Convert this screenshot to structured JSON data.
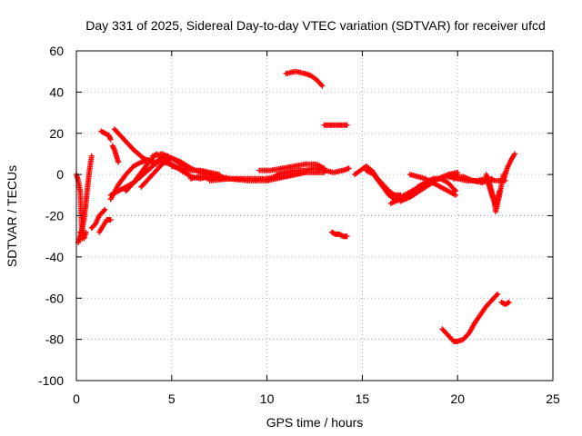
{
  "chart_data": {
    "type": "scatter",
    "title": "Day 331 of 2025, Sidereal Day-to-day VTEC variation (SDTVAR) for receiver ufcd",
    "xlabel": "GPS time / hours",
    "ylabel": "SDTVAR / TECUs",
    "xlim": [
      0,
      25
    ],
    "ylim": [
      -100,
      60
    ],
    "x_ticks": [
      0,
      5,
      10,
      15,
      20,
      25
    ],
    "y_ticks": [
      -100,
      -80,
      -60,
      -40,
      -20,
      0,
      20,
      40,
      60
    ],
    "x_tick_labels": [
      "0",
      "5",
      "10",
      "15",
      "20",
      "25"
    ],
    "y_tick_labels": [
      "-100",
      "-80",
      "-60",
      "-40",
      "-20",
      "0",
      "20",
      "40",
      "60"
    ],
    "grid": true,
    "marker": "+",
    "color": "#ff0000",
    "series": [
      {
        "name": "s1",
        "x": [
          0.0,
          0.1,
          0.2,
          0.3
        ],
        "y": [
          0,
          -3,
          -8,
          -31
        ]
      },
      {
        "name": "s2",
        "x": [
          0.1,
          0.2,
          0.3,
          0.4,
          0.5,
          0.6,
          0.7,
          0.8
        ],
        "y": [
          -33,
          -30,
          -27,
          -22,
          -14,
          -5,
          3,
          9
        ]
      },
      {
        "name": "s3",
        "x": [
          0.2,
          0.3,
          0.4,
          0.5
        ],
        "y": [
          -28,
          -29,
          -31,
          -28
        ]
      },
      {
        "name": "s4",
        "x": [
          0.8,
          1.0,
          1.2,
          1.5
        ],
        "y": [
          -26,
          -24,
          -20,
          -17
        ]
      },
      {
        "name": "s5",
        "x": [
          1.2,
          1.4,
          1.6,
          1.8
        ],
        "y": [
          -28,
          -25,
          -22,
          -22
        ]
      },
      {
        "name": "s6",
        "x": [
          1.3,
          1.5,
          1.7,
          1.8
        ],
        "y": [
          21,
          20,
          19,
          17
        ]
      },
      {
        "name": "s7",
        "x": [
          1.9,
          2.0,
          2.1,
          2.2
        ],
        "y": [
          14,
          12,
          9,
          6
        ]
      },
      {
        "name": "s8",
        "x": [
          2.0,
          2.5,
          3.0,
          3.5,
          4.0,
          4.5,
          5.0
        ],
        "y": [
          22,
          17,
          12,
          8,
          6,
          6,
          5
        ]
      },
      {
        "name": "s9",
        "x": [
          1.8,
          2.2,
          2.6,
          3.0,
          3.4,
          3.8,
          4.2
        ],
        "y": [
          -12,
          -5,
          0,
          4,
          6,
          7,
          5
        ]
      },
      {
        "name": "s10",
        "x": [
          1.8,
          2.4,
          3.0,
          3.5,
          4.0,
          4.4,
          4.8
        ],
        "y": [
          -10,
          -7,
          -4,
          0,
          4,
          8,
          9
        ]
      },
      {
        "name": "s11",
        "x": [
          2.6,
          3.0,
          3.4,
          3.8,
          4.2
        ],
        "y": [
          -8,
          -4,
          1,
          6,
          10
        ]
      },
      {
        "name": "s12",
        "x": [
          3.4,
          3.8,
          4.2,
          4.6,
          5.0,
          5.5,
          6.0
        ],
        "y": [
          -6,
          -2,
          2,
          6,
          8,
          6,
          3
        ]
      },
      {
        "name": "s13",
        "x": [
          4.0,
          4.5,
          5.0,
          5.5,
          6.0,
          6.5,
          7.0,
          7.5,
          8.0
        ],
        "y": [
          9,
          10,
          8,
          5,
          3,
          1,
          0,
          -1,
          -2
        ]
      },
      {
        "name": "s14",
        "x": [
          4.5,
          5.0,
          5.5,
          6.0,
          6.5,
          7.0,
          7.5,
          8.0
        ],
        "y": [
          7,
          5,
          2,
          -1,
          -2,
          -1,
          -2,
          -2
        ]
      },
      {
        "name": "s15",
        "x": [
          5.0,
          5.5,
          6.0,
          6.5,
          7.0,
          7.5
        ],
        "y": [
          4,
          3,
          2,
          2,
          1,
          0
        ]
      },
      {
        "name": "s16",
        "x": [
          6.0,
          6.5,
          7.0,
          7.5,
          8.0,
          8.5,
          9.0,
          9.5,
          10.0,
          10.5,
          11.0,
          11.5,
          12.0
        ],
        "y": [
          -2,
          -1,
          -2,
          -1,
          -2,
          -2,
          -2,
          -2,
          -2,
          -1,
          -1,
          0,
          1
        ]
      },
      {
        "name": "s17",
        "x": [
          7.0,
          8.0,
          9.0,
          10.0,
          10.5,
          11.0,
          11.5,
          12.0,
          12.5,
          13.0
        ],
        "y": [
          -3,
          -2,
          -3,
          -3,
          -2,
          -1,
          0,
          1,
          1,
          1
        ]
      },
      {
        "name": "s18",
        "x": [
          9.6,
          10.2,
          10.8,
          11.4,
          12.0,
          12.6,
          13.0
        ],
        "y": [
          2,
          2,
          3,
          4,
          5,
          5,
          3
        ]
      },
      {
        "name": "s19",
        "x": [
          10.5,
          11.0,
          11.5,
          12.0,
          12.5,
          13.0,
          13.5,
          14.0,
          14.3
        ],
        "y": [
          0,
          1,
          2,
          2,
          3,
          2,
          1,
          2,
          3
        ]
      },
      {
        "name": "s20",
        "x": [
          11.0,
          11.5,
          12.0,
          12.3,
          12.6,
          12.9
        ],
        "y": [
          49,
          50,
          49,
          48,
          46,
          43
        ]
      },
      {
        "name": "s21",
        "x": [
          13.0,
          13.3,
          13.6,
          13.9,
          14.2
        ],
        "y": [
          24,
          24,
          24,
          24,
          24
        ]
      },
      {
        "name": "s22",
        "x": [
          13.4,
          13.6,
          13.8,
          14.0,
          14.2
        ],
        "y": [
          -28,
          -29,
          -29,
          -30,
          -30
        ]
      },
      {
        "name": "s23",
        "x": [
          14.6,
          14.9,
          15.2,
          15.5,
          15.8,
          16.1,
          16.4,
          16.7,
          17.0
        ],
        "y": [
          0,
          2,
          4,
          2,
          -2,
          -5,
          -8,
          -10,
          -10
        ]
      },
      {
        "name": "s24",
        "x": [
          15.2,
          15.6,
          16.0,
          16.4,
          16.7,
          17.0,
          17.4,
          17.8,
          18.2,
          18.6
        ],
        "y": [
          2,
          0,
          -5,
          -10,
          -12,
          -11,
          -9,
          -7,
          -5,
          -3
        ]
      },
      {
        "name": "s25",
        "x": [
          16.5,
          17.0,
          17.5,
          18.0,
          18.5,
          19.0,
          19.5,
          20.0
        ],
        "y": [
          -14,
          -12,
          -10,
          -7,
          -4,
          -2,
          -1,
          0
        ]
      },
      {
        "name": "s26",
        "x": [
          17.0,
          17.5,
          18.0,
          18.5,
          19.0,
          19.5,
          20.0
        ],
        "y": [
          -13,
          -11,
          -8,
          -5,
          -2,
          0,
          1
        ]
      },
      {
        "name": "s27",
        "x": [
          17.5,
          17.9,
          18.3,
          18.7,
          19.1,
          19.5,
          19.9
        ],
        "y": [
          0,
          -1,
          -2,
          -4,
          -6,
          -8,
          -10
        ]
      },
      {
        "name": "s28",
        "x": [
          17.9,
          18.3,
          18.7,
          19.1,
          19.5,
          19.9
        ],
        "y": [
          -6,
          -4,
          -2,
          -2,
          -4,
          -8
        ]
      },
      {
        "name": "s29",
        "x": [
          19.5,
          20.0,
          20.5,
          21.0,
          21.5,
          22.0,
          22.5
        ],
        "y": [
          -1,
          -2,
          -3,
          -3,
          -2,
          -3,
          -3
        ]
      },
      {
        "name": "s30",
        "x": [
          19.8,
          20.3,
          20.8,
          21.3,
          21.8
        ],
        "y": [
          -2,
          -1,
          -3,
          -4,
          -2
        ]
      },
      {
        "name": "s31",
        "x": [
          21.5,
          21.7,
          21.9,
          22.0,
          22.2,
          22.4
        ],
        "y": [
          0,
          -5,
          -12,
          -18,
          -10,
          0
        ]
      },
      {
        "name": "s32",
        "x": [
          21.6,
          21.8,
          22.0,
          22.2
        ],
        "y": [
          -4,
          -10,
          -15,
          -8
        ]
      },
      {
        "name": "s33",
        "x": [
          22.4,
          22.6,
          22.8,
          23.0
        ],
        "y": [
          -3,
          3,
          7,
          10
        ]
      },
      {
        "name": "s34",
        "x": [
          19.2,
          19.5,
          19.8,
          20.0,
          20.3,
          20.6,
          20.9,
          21.2,
          21.5,
          21.8,
          22.1
        ],
        "y": [
          -75,
          -78,
          -81,
          -81,
          -80,
          -77,
          -72,
          -68,
          -64,
          -61,
          -58
        ]
      },
      {
        "name": "s35",
        "x": [
          22.3,
          22.5,
          22.7
        ],
        "y": [
          -62,
          -63,
          -62
        ]
      }
    ]
  }
}
